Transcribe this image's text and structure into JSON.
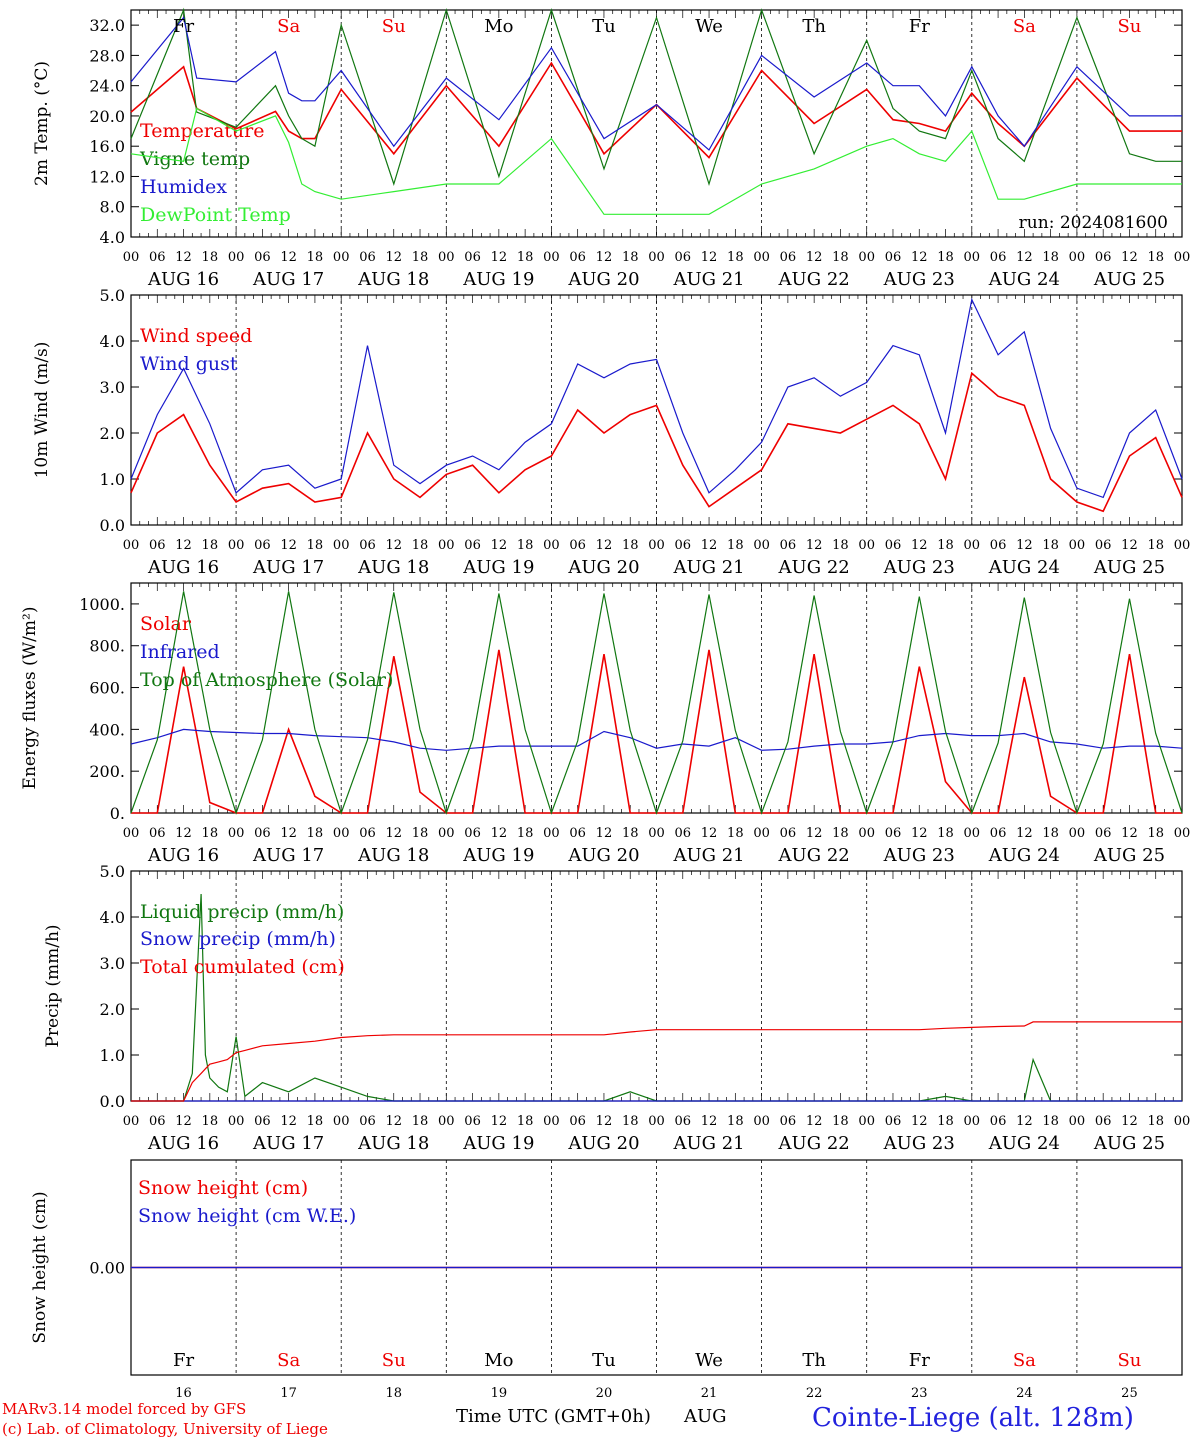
{
  "chart_data": [
    {
      "type": "line",
      "ylabel": "2m Temp. (°C)",
      "ylim": [
        4,
        34
      ],
      "yticks": [
        "4.0",
        "8.0",
        "12.0",
        "16.0",
        "20.0",
        "24.0",
        "28.0",
        "32.0"
      ],
      "annotation": "run: 2024081600",
      "x": [
        0,
        12,
        15,
        24,
        33,
        36,
        39,
        42,
        48,
        60,
        72,
        84,
        96,
        108,
        120,
        132,
        144,
        156,
        168,
        174,
        180,
        186,
        192,
        198,
        204,
        216,
        228,
        234,
        240
      ],
      "series": [
        {
          "name": "Temperature",
          "color": "#ee0000",
          "values": [
            20.5,
            26.5,
            21,
            18.3,
            20.6,
            18,
            17,
            17,
            23.5,
            15,
            24,
            16,
            27,
            15,
            21.5,
            14.5,
            26,
            19,
            23.5,
            19.5,
            19,
            18,
            23,
            19,
            16,
            25,
            18,
            18,
            18
          ]
        },
        {
          "name": "Vigne temp",
          "color": "#117711",
          "values": [
            17,
            34,
            20.5,
            18.5,
            24,
            20,
            17,
            16,
            32,
            11,
            34,
            12,
            34,
            13,
            33,
            11,
            34,
            15,
            30,
            21,
            18,
            17,
            26,
            17,
            14,
            33,
            15,
            14,
            14
          ]
        },
        {
          "name": "Humidex",
          "color": "#1a1acc",
          "values": [
            24.5,
            33,
            25,
            24.5,
            28.5,
            23,
            22,
            22,
            26,
            16,
            25,
            19.5,
            29,
            17,
            21.5,
            15.5,
            28,
            22.5,
            27,
            24,
            24,
            20,
            26.5,
            20,
            16,
            26.5,
            20,
            20,
            20
          ]
        },
        {
          "name": "DewPoint Temp",
          "color": "#33ee33",
          "values": [
            15,
            14,
            21,
            18,
            20,
            16.5,
            11,
            10,
            9,
            10,
            11,
            11,
            17,
            7,
            7,
            7,
            11,
            13,
            16,
            17,
            15,
            14,
            18,
            9,
            9,
            11,
            11,
            11,
            11
          ]
        }
      ]
    },
    {
      "type": "line",
      "ylabel": "10m Wind (m/s)",
      "ylim": [
        0,
        5
      ],
      "yticks": [
        "0.0",
        "1.0",
        "2.0",
        "3.0",
        "4.0",
        "5.0"
      ],
      "x": [
        0,
        6,
        12,
        18,
        24,
        30,
        36,
        42,
        48,
        54,
        60,
        66,
        72,
        78,
        84,
        90,
        96,
        102,
        108,
        114,
        120,
        126,
        132,
        138,
        144,
        150,
        156,
        162,
        168,
        174,
        180,
        186,
        192,
        198,
        204,
        210,
        216,
        222,
        228,
        234,
        240
      ],
      "series": [
        {
          "name": "Wind speed",
          "color": "#ee0000",
          "values": [
            0.7,
            2.0,
            2.4,
            1.3,
            0.5,
            0.8,
            0.9,
            0.5,
            0.6,
            2.0,
            1.0,
            0.6,
            1.1,
            1.3,
            0.7,
            1.2,
            1.5,
            2.5,
            2.0,
            2.4,
            2.6,
            1.3,
            0.4,
            0.8,
            1.2,
            2.2,
            2.1,
            2.0,
            2.3,
            2.6,
            2.2,
            1.0,
            3.3,
            2.8,
            2.6,
            1.0,
            0.5,
            0.3,
            1.5,
            1.9,
            0.6
          ]
        },
        {
          "name": "Wind gust",
          "color": "#1a1acc",
          "values": [
            1.0,
            2.4,
            3.4,
            2.2,
            0.7,
            1.2,
            1.3,
            0.8,
            1.0,
            3.9,
            1.3,
            0.9,
            1.3,
            1.5,
            1.2,
            1.8,
            2.2,
            3.5,
            3.2,
            3.5,
            3.6,
            2.0,
            0.7,
            1.2,
            1.8,
            3.0,
            3.2,
            2.8,
            3.1,
            3.9,
            3.7,
            2.0,
            4.9,
            3.7,
            4.2,
            2.1,
            0.8,
            0.6,
            2.0,
            2.5,
            1.0
          ]
        }
      ]
    },
    {
      "type": "line",
      "ylabel": "Energy fluxes (W/m²)",
      "ylim": [
        0,
        1100
      ],
      "yticks": [
        "0.",
        "200.",
        "400.",
        "600.",
        "800.",
        "1000."
      ],
      "x": [
        0,
        6,
        12,
        18,
        24,
        30,
        36,
        42,
        48,
        54,
        60,
        66,
        72,
        78,
        84,
        90,
        96,
        102,
        108,
        114,
        120,
        126,
        132,
        138,
        144,
        150,
        156,
        162,
        168,
        174,
        180,
        186,
        192,
        198,
        204,
        210,
        216,
        222,
        228,
        234,
        240
      ],
      "series": [
        {
          "name": "Solar",
          "color": "#ee0000",
          "values": [
            0,
            0,
            700,
            50,
            0,
            0,
            400,
            80,
            0,
            0,
            750,
            100,
            0,
            0,
            780,
            0,
            0,
            0,
            760,
            0,
            0,
            0,
            780,
            0,
            0,
            0,
            760,
            0,
            0,
            0,
            700,
            150,
            0,
            0,
            650,
            80,
            0,
            0,
            760,
            0,
            0
          ]
        },
        {
          "name": "Infrared",
          "color": "#1a1acc",
          "values": [
            330,
            360,
            400,
            390,
            385,
            380,
            380,
            370,
            365,
            360,
            340,
            310,
            300,
            310,
            320,
            320,
            320,
            320,
            390,
            360,
            310,
            330,
            320,
            360,
            300,
            305,
            320,
            330,
            330,
            340,
            370,
            380,
            370,
            370,
            380,
            340,
            330,
            310,
            320,
            320,
            310
          ]
        },
        {
          "name": "Top of Atmosphere (Solar)",
          "color": "#117711",
          "values": [
            0,
            350,
            1060,
            400,
            0,
            350,
            1060,
            400,
            0,
            350,
            1055,
            400,
            0,
            350,
            1050,
            400,
            0,
            345,
            1050,
            395,
            0,
            345,
            1045,
            395,
            0,
            340,
            1040,
            390,
            0,
            340,
            1035,
            390,
            0,
            335,
            1030,
            385,
            0,
            330,
            1025,
            380,
            0
          ]
        }
      ]
    },
    {
      "type": "line",
      "ylabel": "Precip (mm/h)",
      "ylim": [
        0,
        5
      ],
      "yticks": [
        "0.0",
        "1.0",
        "2.0",
        "3.0",
        "4.0",
        "5.0"
      ],
      "x": [
        0,
        12,
        14,
        16,
        17,
        18,
        20,
        22,
        24,
        26,
        30,
        36,
        42,
        48,
        54,
        60,
        66,
        72,
        84,
        96,
        108,
        114,
        120,
        132,
        144,
        156,
        168,
        180,
        186,
        192,
        198,
        204,
        206,
        210,
        216,
        228,
        240
      ],
      "series": [
        {
          "name": "Liquid precip (mm/h)",
          "color": "#117711",
          "values": [
            0,
            0,
            0.6,
            4.5,
            1.0,
            0.5,
            0.3,
            0.2,
            1.4,
            0.1,
            0.4,
            0.2,
            0.5,
            0.3,
            0.1,
            0,
            0,
            0,
            0,
            0,
            0,
            0.2,
            0,
            0,
            0,
            0,
            0,
            0,
            0.1,
            0,
            0,
            0,
            0.9,
            0,
            0,
            0,
            0
          ]
        },
        {
          "name": "Snow precip (mm/h)",
          "color": "#1a1acc",
          "values": [
            0,
            0,
            0,
            0,
            0,
            0,
            0,
            0,
            0,
            0,
            0,
            0,
            0,
            0,
            0,
            0,
            0,
            0,
            0,
            0,
            0,
            0,
            0,
            0,
            0,
            0,
            0,
            0,
            0,
            0,
            0,
            0,
            0,
            0,
            0,
            0,
            0
          ]
        },
        {
          "name": "Total cumulated (cm)",
          "color": "#ee0000",
          "values": [
            0,
            0,
            0.4,
            0.6,
            0.7,
            0.8,
            0.85,
            0.9,
            1.05,
            1.1,
            1.2,
            1.25,
            1.3,
            1.38,
            1.42,
            1.44,
            1.44,
            1.44,
            1.44,
            1.44,
            1.44,
            1.5,
            1.55,
            1.55,
            1.55,
            1.55,
            1.55,
            1.55,
            1.58,
            1.6,
            1.62,
            1.63,
            1.72,
            1.72,
            1.72,
            1.72,
            1.72
          ]
        }
      ]
    },
    {
      "type": "line",
      "ylabel": "Snow height (cm)",
      "ylim": [
        -1,
        1
      ],
      "yticks": [
        "0.00"
      ],
      "x": [
        0,
        240
      ],
      "series": [
        {
          "name": "Snow height (cm)",
          "color": "#ee0000",
          "values": [
            0,
            0
          ]
        },
        {
          "name": "Snow height (cm W.E.)",
          "color": "#1a1acc",
          "values": [
            0,
            0
          ]
        }
      ]
    }
  ],
  "days": [
    {
      "abbr": "Fr",
      "date": "AUG 16",
      "num": "16",
      "weekend": false
    },
    {
      "abbr": "Sa",
      "date": "AUG 17",
      "num": "17",
      "weekend": true
    },
    {
      "abbr": "Su",
      "date": "AUG 18",
      "num": "18",
      "weekend": true
    },
    {
      "abbr": "Mo",
      "date": "AUG 19",
      "num": "19",
      "weekend": false
    },
    {
      "abbr": "Tu",
      "date": "AUG 20",
      "num": "20",
      "weekend": false
    },
    {
      "abbr": "We",
      "date": "AUG 21",
      "num": "21",
      "weekend": false
    },
    {
      "abbr": "Th",
      "date": "AUG 22",
      "num": "22",
      "weekend": false
    },
    {
      "abbr": "Fr",
      "date": "AUG 23",
      "num": "23",
      "weekend": false
    },
    {
      "abbr": "Sa",
      "date": "AUG 24",
      "num": "24",
      "weekend": true
    },
    {
      "abbr": "Su",
      "date": "AUG 25",
      "num": "25",
      "weekend": true
    }
  ],
  "hour_ticks": [
    "00",
    "06",
    "12",
    "18"
  ],
  "final_hour": "00",
  "footer": {
    "credit1": "MARv3.14 model forced by GFS",
    "credit2": "(c) Lab. of Climatology, University of Liege",
    "xlabel": "Time UTC (GMT+0h)",
    "month": "AUG",
    "station": "Cointe-Liege (alt. 128m)"
  },
  "colors": {
    "weekend": "#ee0000",
    "weekday": "#000000",
    "station": "#2222dd"
  }
}
